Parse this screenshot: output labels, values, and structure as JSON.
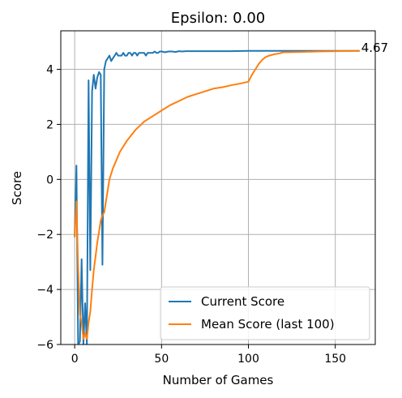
{
  "chart_data": {
    "type": "line",
    "title": "Epsilon: 0.00",
    "xlabel": "Number of Games",
    "ylabel": "Score",
    "xlim": [
      -8,
      173
    ],
    "ylim": [
      -6,
      5.4
    ],
    "xticks": [
      0,
      50,
      100,
      150
    ],
    "yticks": [
      -6,
      -4,
      -2,
      0,
      2,
      4
    ],
    "xtick_labels": [
      "0",
      "50",
      "100",
      "150"
    ],
    "ytick_labels": [
      "−6",
      "−4",
      "−2",
      "0",
      "2",
      "4"
    ],
    "grid": true,
    "legend_placement": "lower-right",
    "annotation": {
      "text": "4.67",
      "x": 164,
      "y": 4.67
    },
    "series": [
      {
        "name": "Current Score",
        "color": "#1f77b4",
        "x": [
          0,
          1,
          2,
          3,
          4,
          5,
          6,
          7,
          8,
          9,
          10,
          11,
          12,
          13,
          14,
          15,
          16,
          17,
          18,
          19,
          20,
          21,
          22,
          23,
          24,
          25,
          26,
          27,
          28,
          29,
          30,
          31,
          32,
          33,
          34,
          35,
          36,
          37,
          38,
          39,
          40,
          41,
          42,
          43,
          44,
          45,
          46,
          47,
          48,
          49,
          50,
          52,
          54,
          56,
          58,
          60,
          62,
          64,
          66,
          68,
          70,
          75,
          80,
          90,
          100,
          110,
          120,
          130,
          140,
          150,
          160,
          164
        ],
        "y": [
          -2.1,
          0.5,
          -6.0,
          -5.9,
          -2.9,
          -6.0,
          -4.5,
          -6.0,
          3.6,
          -3.3,
          3.2,
          3.8,
          3.3,
          3.7,
          3.9,
          3.8,
          -3.1,
          4.0,
          4.3,
          4.4,
          4.5,
          4.3,
          4.4,
          4.5,
          4.6,
          4.5,
          4.5,
          4.5,
          4.6,
          4.5,
          4.5,
          4.6,
          4.6,
          4.5,
          4.6,
          4.6,
          4.5,
          4.6,
          4.6,
          4.6,
          4.6,
          4.5,
          4.6,
          4.6,
          4.6,
          4.6,
          4.65,
          4.6,
          4.6,
          4.65,
          4.65,
          4.62,
          4.65,
          4.65,
          4.63,
          4.66,
          4.65,
          4.66,
          4.66,
          4.66,
          4.66,
          4.66,
          4.66,
          4.66,
          4.67,
          4.67,
          4.67,
          4.67,
          4.67,
          4.67,
          4.67,
          4.67
        ]
      },
      {
        "name": "Mean Score (last 100)",
        "color": "#ff7f0e",
        "x": [
          0,
          1,
          2,
          3,
          4,
          5,
          6,
          7,
          8,
          9,
          10,
          11,
          12,
          13,
          14,
          15,
          16,
          17,
          18,
          19,
          20,
          22,
          24,
          26,
          28,
          30,
          35,
          40,
          45,
          50,
          55,
          60,
          65,
          70,
          75,
          80,
          85,
          90,
          95,
          100,
          102,
          104,
          106,
          108,
          110,
          112,
          115,
          118,
          120,
          130,
          140,
          150,
          160,
          164
        ],
        "y": [
          -2.1,
          -0.8,
          -3.2,
          -4.9,
          -5.2,
          -5.8,
          -5.6,
          -5.8,
          -5.2,
          -4.8,
          -4.0,
          -3.3,
          -2.8,
          -2.3,
          -1.9,
          -1.5,
          -1.3,
          -1.2,
          -0.8,
          -0.4,
          0.0,
          0.4,
          0.7,
          1.0,
          1.2,
          1.4,
          1.8,
          2.1,
          2.3,
          2.5,
          2.7,
          2.85,
          3.0,
          3.1,
          3.2,
          3.3,
          3.35,
          3.42,
          3.48,
          3.55,
          3.8,
          4.0,
          4.2,
          4.35,
          4.45,
          4.5,
          4.55,
          4.58,
          4.62,
          4.63,
          4.65,
          4.66,
          4.67,
          4.67
        ]
      }
    ]
  }
}
